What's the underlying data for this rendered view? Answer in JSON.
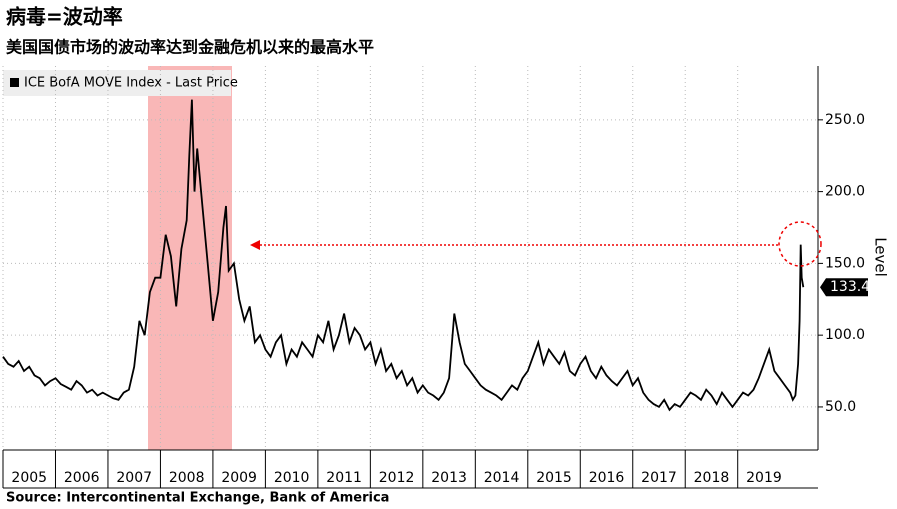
{
  "chart_data": {
    "type": "line",
    "title": "病毒=波动率",
    "subtitle": "美国国债市场的波动率达到金融危机以来的最高水平",
    "source": "Source: Intercontinental Exchange, Bank of America",
    "y_label": "Level",
    "legend": "ICE BofA MOVE Index - Last Price",
    "x": [
      2005,
      2005.1,
      2005.2,
      2005.3,
      2005.4,
      2005.5,
      2005.6,
      2005.7,
      2005.8,
      2005.9,
      2006,
      2006.1,
      2006.2,
      2006.3,
      2006.4,
      2006.5,
      2006.6,
      2006.7,
      2006.8,
      2006.9,
      2007,
      2007.1,
      2007.2,
      2007.3,
      2007.4,
      2007.5,
      2007.6,
      2007.7,
      2007.8,
      2007.9,
      2008,
      2008.1,
      2008.2,
      2008.3,
      2008.4,
      2008.5,
      2008.55,
      2008.6,
      2008.65,
      2008.7,
      2008.8,
      2008.9,
      2009,
      2009.1,
      2009.2,
      2009.25,
      2009.3,
      2009.4,
      2009.5,
      2009.6,
      2009.7,
      2009.8,
      2009.9,
      2010,
      2010.1,
      2010.2,
      2010.3,
      2010.4,
      2010.5,
      2010.6,
      2010.7,
      2010.8,
      2010.9,
      2011,
      2011.1,
      2011.2,
      2011.3,
      2011.4,
      2011.5,
      2011.6,
      2011.7,
      2011.8,
      2011.9,
      2012,
      2012.1,
      2012.2,
      2012.3,
      2012.4,
      2012.5,
      2012.6,
      2012.7,
      2012.8,
      2012.9,
      2013,
      2013.1,
      2013.2,
      2013.3,
      2013.4,
      2013.5,
      2013.6,
      2013.7,
      2013.8,
      2013.9,
      2014,
      2014.1,
      2014.2,
      2014.3,
      2014.4,
      2014.5,
      2014.6,
      2014.7,
      2014.8,
      2014.9,
      2015,
      2015.1,
      2015.2,
      2015.3,
      2015.4,
      2015.5,
      2015.6,
      2015.7,
      2015.8,
      2015.9,
      2016,
      2016.1,
      2016.2,
      2016.3,
      2016.4,
      2016.5,
      2016.6,
      2016.7,
      2016.8,
      2016.9,
      2017,
      2017.1,
      2017.2,
      2017.3,
      2017.4,
      2017.5,
      2017.6,
      2017.7,
      2017.8,
      2017.9,
      2018,
      2018.1,
      2018.2,
      2018.3,
      2018.4,
      2018.5,
      2018.6,
      2018.7,
      2018.8,
      2018.9,
      2019,
      2019.1,
      2019.2,
      2019.3,
      2019.4,
      2019.5,
      2019.6,
      2019.7,
      2019.8,
      2019.9,
      2020,
      2020.05,
      2020.1,
      2020.15,
      2020.18,
      2020.2,
      2020.22,
      2020.25
    ],
    "series": [
      {
        "name": "ICE BofA MOVE Index - Last Price",
        "color": "#000000",
        "values": [
          85,
          80,
          78,
          82,
          75,
          78,
          72,
          70,
          65,
          68,
          70,
          66,
          64,
          62,
          68,
          65,
          60,
          62,
          58,
          60,
          58,
          56,
          55,
          60,
          62,
          78,
          110,
          100,
          130,
          140,
          140,
          170,
          155,
          120,
          160,
          180,
          225,
          264,
          200,
          230,
          190,
          150,
          110,
          130,
          175,
          190,
          145,
          150,
          125,
          110,
          120,
          95,
          100,
          90,
          85,
          95,
          100,
          80,
          90,
          85,
          95,
          90,
          85,
          100,
          95,
          110,
          90,
          100,
          115,
          95,
          105,
          100,
          90,
          95,
          80,
          90,
          75,
          80,
          70,
          75,
          65,
          70,
          60,
          65,
          60,
          58,
          55,
          60,
          70,
          115,
          95,
          80,
          75,
          70,
          65,
          62,
          60,
          58,
          55,
          60,
          65,
          62,
          70,
          75,
          85,
          95,
          80,
          90,
          85,
          80,
          88,
          75,
          72,
          80,
          85,
          75,
          70,
          78,
          72,
          68,
          65,
          70,
          75,
          65,
          70,
          60,
          55,
          52,
          50,
          55,
          48,
          52,
          50,
          55,
          60,
          58,
          55,
          62,
          58,
          52,
          60,
          55,
          50,
          55,
          60,
          58,
          62,
          70,
          80,
          90,
          75,
          70,
          65,
          60,
          55,
          58,
          80,
          110,
          163,
          140,
          133.4
        ]
      }
    ],
    "xlim": [
      2005,
      2020.53
    ],
    "xticks": [
      2005,
      2006,
      2007,
      2008,
      2009,
      2010,
      2011,
      2012,
      2013,
      2014,
      2015,
      2016,
      2017,
      2018,
      2019
    ],
    "ylim": [
      20,
      287.5
    ],
    "yticks": [
      {
        "value": 50,
        "label": "50.0"
      },
      {
        "value": 100,
        "label": "100.0"
      },
      {
        "value": 150,
        "label": "150.0"
      },
      {
        "value": 200,
        "label": "200.0"
      },
      {
        "value": 250,
        "label": "250.0"
      }
    ],
    "grid": true
  }
}
